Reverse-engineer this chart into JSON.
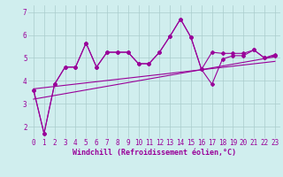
{
  "bg_color": "#d0eeee",
  "line_color": "#990099",
  "grid_color": "#aacccc",
  "xlabel": "Windchill (Refroidissement éolien,°C)",
  "xlabel_fontsize": 6.0,
  "tick_fontsize": 5.5,
  "ylabel_ticks": [
    2,
    3,
    4,
    5,
    6,
    7
  ],
  "xlim": [
    -0.5,
    23.5
  ],
  "ylim": [
    1.5,
    7.3
  ],
  "series1_x": [
    0,
    1,
    2,
    3,
    4,
    5,
    6,
    7,
    8,
    9,
    10,
    11,
    12,
    13,
    14,
    15,
    16,
    17,
    18,
    19,
    20,
    21,
    22,
    23
  ],
  "series1_y": [
    3.6,
    1.7,
    3.85,
    4.6,
    4.6,
    5.65,
    4.6,
    5.25,
    5.25,
    5.25,
    4.75,
    4.75,
    5.25,
    5.95,
    6.7,
    5.9,
    4.5,
    5.25,
    5.2,
    5.2,
    5.2,
    5.35,
    5.0,
    5.15
  ],
  "series2_x": [
    0,
    1,
    2,
    3,
    4,
    5,
    6,
    7,
    8,
    9,
    10,
    11,
    12,
    13,
    14,
    15,
    16,
    17,
    18,
    19,
    20,
    21,
    22,
    23
  ],
  "series2_y": [
    3.6,
    1.7,
    3.85,
    4.6,
    4.6,
    5.65,
    4.6,
    5.25,
    5.25,
    5.25,
    4.75,
    4.75,
    5.25,
    5.95,
    6.7,
    5.9,
    4.5,
    3.85,
    4.95,
    5.1,
    5.1,
    5.35,
    5.0,
    5.1
  ],
  "trend1_x": [
    0,
    23
  ],
  "trend1_y": [
    3.65,
    4.85
  ],
  "trend2_x": [
    0,
    23
  ],
  "trend2_y": [
    3.2,
    5.05
  ]
}
